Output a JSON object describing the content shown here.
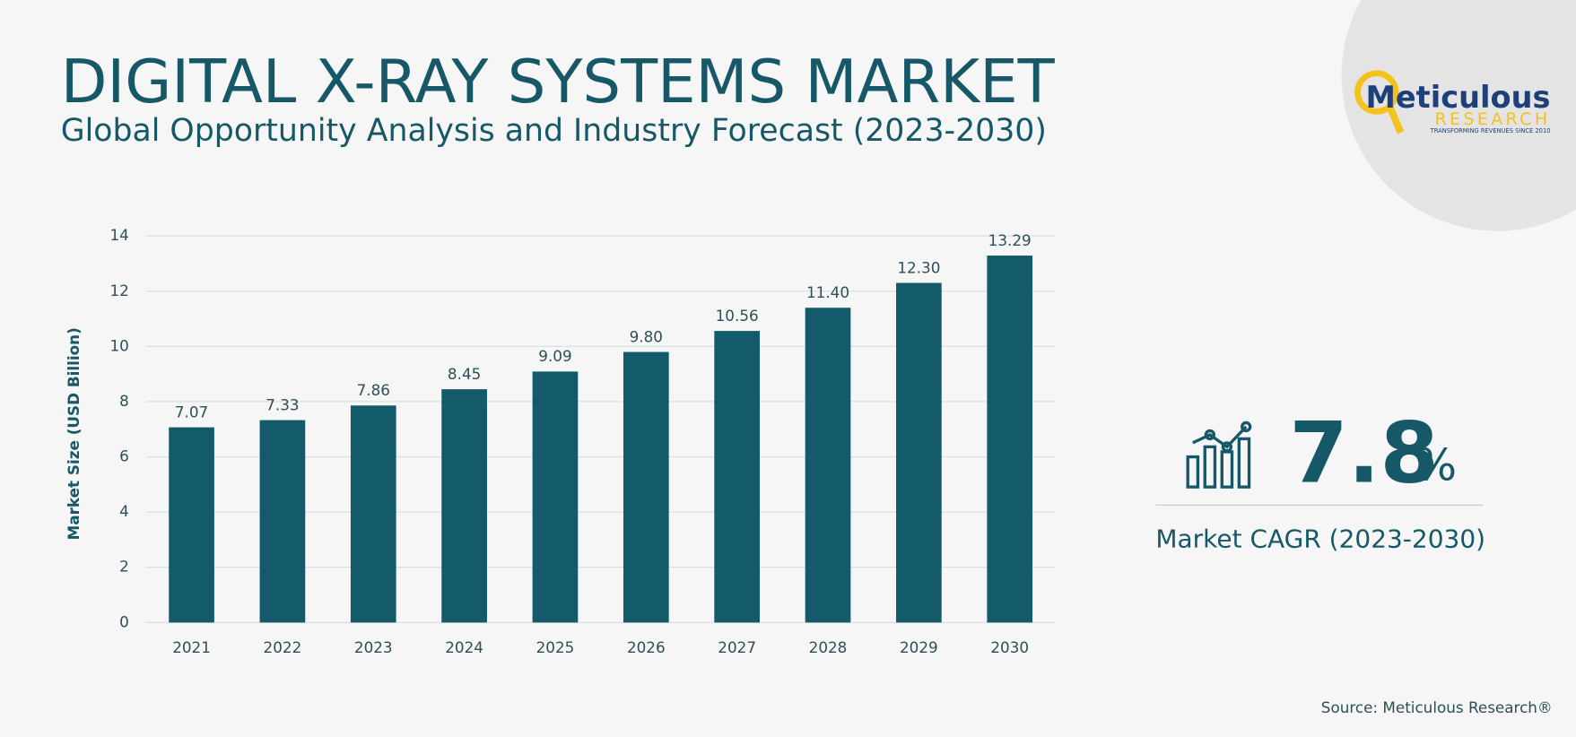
{
  "chart_data": {
    "type": "bar",
    "title": "DIGITAL X-RAY SYSTEMS MARKET",
    "subtitle": "Global Opportunity Analysis and Industry Forecast (2023-2030)",
    "y_label": "Market Size (USD Billion)",
    "categories": [
      "2021",
      "2022",
      "2023",
      "2024",
      "2025",
      "2026",
      "2027",
      "2028",
      "2029",
      "2030"
    ],
    "values": [
      7.07,
      7.33,
      7.86,
      8.45,
      9.09,
      9.8,
      10.56,
      11.4,
      12.3,
      13.29
    ],
    "value_labels": [
      "7.07",
      "7.33",
      "7.86",
      "8.45",
      "9.09",
      "9.80",
      "10.56",
      "11.40",
      "12.30",
      "13.29"
    ],
    "color": "#135a6a",
    "ylim": [
      0,
      14
    ],
    "yticks": [
      0,
      2,
      4,
      6,
      8,
      10,
      12,
      14
    ],
    "grid": true
  },
  "cagr": {
    "value": 7.8,
    "unit": "%",
    "label": "Market CAGR (2023-2030)"
  },
  "logo": {
    "name": "Meticulous",
    "sub": "RESEARCH",
    "tagline": "TRANSFORMING REVENUES SINCE 2010"
  },
  "source": "Source: Meticulous Research®"
}
